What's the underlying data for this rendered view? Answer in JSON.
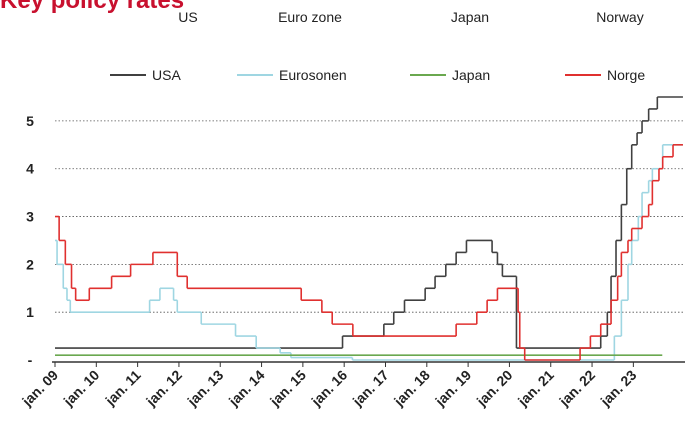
{
  "chart_data": {
    "type": "step-line",
    "title": "Key policy rates",
    "panel_labels": [
      "US",
      "Euro zone",
      "Japan",
      "Norway"
    ],
    "xlim": [
      2009,
      2024.25
    ],
    "xticks": [
      {
        "value": 2009,
        "label": "jan. 09"
      },
      {
        "value": 2010,
        "label": "jan. 10"
      },
      {
        "value": 2011,
        "label": "jan. 11"
      },
      {
        "value": 2012,
        "label": "jan. 12"
      },
      {
        "value": 2013,
        "label": "jan. 13"
      },
      {
        "value": 2014,
        "label": "jan. 14"
      },
      {
        "value": 2015,
        "label": "jan. 15"
      },
      {
        "value": 2016,
        "label": "jan. 16"
      },
      {
        "value": 2017,
        "label": "jan. 17"
      },
      {
        "value": 2018,
        "label": "jan. 18"
      },
      {
        "value": 2019,
        "label": "jan. 19"
      },
      {
        "value": 2020,
        "label": "jan. 20"
      },
      {
        "value": 2021,
        "label": "jan. 21"
      },
      {
        "value": 2022,
        "label": "jan. 22"
      },
      {
        "value": 2023,
        "label": "jan. 23"
      }
    ],
    "ylim": [
      0,
      5.5
    ],
    "yticks": [
      {
        "value": 0,
        "label": "-"
      },
      1,
      2,
      3,
      4,
      5
    ],
    "grid": true,
    "series": [
      {
        "name": "USA",
        "color": "#404040",
        "x": [
          2009,
          2015.96,
          2016.96,
          2017.2,
          2017.46,
          2017.96,
          2018.2,
          2018.46,
          2018.71,
          2018.96,
          2019.58,
          2019.71,
          2019.83,
          2020.17,
          2022.21,
          2022.37,
          2022.46,
          2022.58,
          2022.71,
          2022.84,
          2022.96,
          2023.09,
          2023.21,
          2023.37,
          2023.58,
          2024.2
        ],
        "values": [
          0.25,
          0.5,
          0.75,
          1.0,
          1.25,
          1.5,
          1.75,
          2.0,
          2.25,
          2.5,
          2.25,
          2.0,
          1.75,
          0.25,
          0.5,
          1.0,
          1.75,
          2.5,
          3.25,
          4.0,
          4.5,
          4.75,
          5.0,
          5.25,
          5.5,
          5.5
        ]
      },
      {
        "name": "Eurosonen",
        "color": "#9fd6e2",
        "x": [
          2009,
          2009.05,
          2009.2,
          2009.29,
          2009.37,
          2011.29,
          2011.54,
          2011.87,
          2011.96,
          2012.54,
          2013.37,
          2013.87,
          2014.45,
          2014.71,
          2016.2,
          2022.54,
          2022.71,
          2022.87,
          2022.96,
          2023.12,
          2023.21,
          2023.37,
          2023.46,
          2023.71,
          2024.2
        ],
        "values": [
          2.5,
          2.0,
          1.5,
          1.25,
          1.0,
          1.25,
          1.5,
          1.25,
          1.0,
          0.75,
          0.5,
          0.25,
          0.15,
          0.05,
          0,
          0.5,
          1.25,
          2.0,
          2.5,
          3.0,
          3.5,
          3.75,
          4.0,
          4.5,
          4.5
        ]
      },
      {
        "name": "Japan",
        "color": "#6aa84f",
        "x": [
          2009,
          2023.7
        ],
        "values": [
          0.1,
          0.1
        ]
      },
      {
        "name": "Norge",
        "color": "#e0302f",
        "x": [
          2009,
          2009.1,
          2009.25,
          2009.4,
          2009.5,
          2009.83,
          2010.37,
          2010.83,
          2011.37,
          2011.96,
          2012.2,
          2014.96,
          2015.46,
          2015.71,
          2016.21,
          2018.71,
          2019.21,
          2019.46,
          2019.71,
          2020.21,
          2020.25,
          2020.37,
          2021.71,
          2021.96,
          2022.21,
          2022.46,
          2022.62,
          2022.71,
          2022.87,
          2022.96,
          2023.21,
          2023.37,
          2023.46,
          2023.62,
          2023.71,
          2023.96,
          2024.2
        ],
        "values": [
          3.0,
          2.5,
          2.0,
          1.5,
          1.25,
          1.5,
          1.75,
          2.0,
          2.25,
          1.75,
          1.5,
          1.25,
          1.0,
          0.75,
          0.5,
          0.75,
          1.0,
          1.25,
          1.5,
          1.0,
          0.25,
          0,
          0.25,
          0.5,
          0.75,
          1.25,
          1.75,
          2.25,
          2.5,
          2.75,
          3.0,
          3.25,
          3.75,
          4.0,
          4.25,
          4.5,
          4.5
        ]
      }
    ]
  }
}
